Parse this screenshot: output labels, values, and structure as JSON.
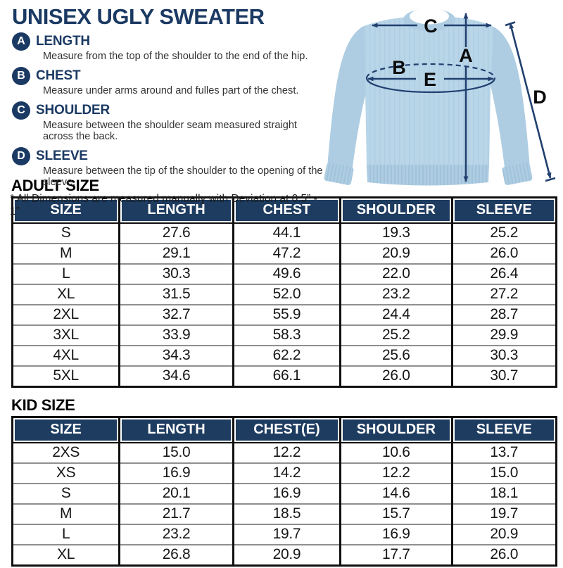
{
  "page": {
    "title": "UNISEX UGLY SWEATER",
    "note": "* All Dimensions are measured manually with Deviation at 0.5” - 1”"
  },
  "legend": {
    "items": [
      {
        "letter": "A",
        "term": "LENGTH",
        "desc": "Measure from the top of the shoulder to the end of the hip."
      },
      {
        "letter": "B",
        "term": "CHEST",
        "desc": "Measure under arms around and fulles part of the chest."
      },
      {
        "letter": "C",
        "term": "SHOULDER",
        "desc": "Measure between the shoulder seam measured straight across the back."
      },
      {
        "letter": "D",
        "term": "SLEEVE",
        "desc": "Measure between the tip of the shoulder to the opening of the sleeve."
      }
    ]
  },
  "diagram": {
    "labels": {
      "a": "A",
      "b": "B",
      "c": "C",
      "d": "D",
      "e": "E"
    }
  },
  "adult_table": {
    "heading": "ADULT SIZE",
    "columns": [
      "SIZE",
      "LENGTH",
      "CHEST",
      "SHOULDER",
      "SLEEVE"
    ],
    "rows": [
      [
        "S",
        "27.6",
        "44.1",
        "19.3",
        "25.2"
      ],
      [
        "M",
        "29.1",
        "47.2",
        "20.9",
        "26.0"
      ],
      [
        "L",
        "30.3",
        "49.6",
        "22.0",
        "26.4"
      ],
      [
        "XL",
        "31.5",
        "52.0",
        "23.2",
        "27.2"
      ],
      [
        "2XL",
        "32.7",
        "55.9",
        "24.4",
        "28.7"
      ],
      [
        "3XL",
        "33.9",
        "58.3",
        "25.2",
        "29.9"
      ],
      [
        "4XL",
        "34.3",
        "62.2",
        "25.6",
        "30.3"
      ],
      [
        "5XL",
        "34.6",
        "66.1",
        "26.0",
        "30.7"
      ]
    ]
  },
  "kid_table": {
    "heading": "KID SIZE",
    "columns": [
      "SIZE",
      "LENGTH",
      "CHEST(E)",
      "SHOULDER",
      "SLEEVE"
    ],
    "rows": [
      [
        "2XS",
        "15.0",
        "12.2",
        "10.6",
        "13.7"
      ],
      [
        "XS",
        "16.9",
        "14.2",
        "12.2",
        "15.0"
      ],
      [
        "S",
        "20.1",
        "16.9",
        "14.6",
        "18.1"
      ],
      [
        "M",
        "21.7",
        "18.5",
        "15.7",
        "19.7"
      ],
      [
        "L",
        "23.2",
        "19.7",
        "16.9",
        "20.9"
      ],
      [
        "XL",
        "26.8",
        "20.9",
        "17.7",
        "26.0"
      ]
    ]
  },
  "colors": {
    "navy": "#1b3a63",
    "header_bg": "#1e3c60",
    "arrow": "#21406f",
    "sweater_main": "#b9d5e8",
    "sweater_mid": "#aecde2",
    "sweater_shade": "#9cc0d8",
    "table_border": "#101010",
    "row_line": "#8f8f8f"
  }
}
